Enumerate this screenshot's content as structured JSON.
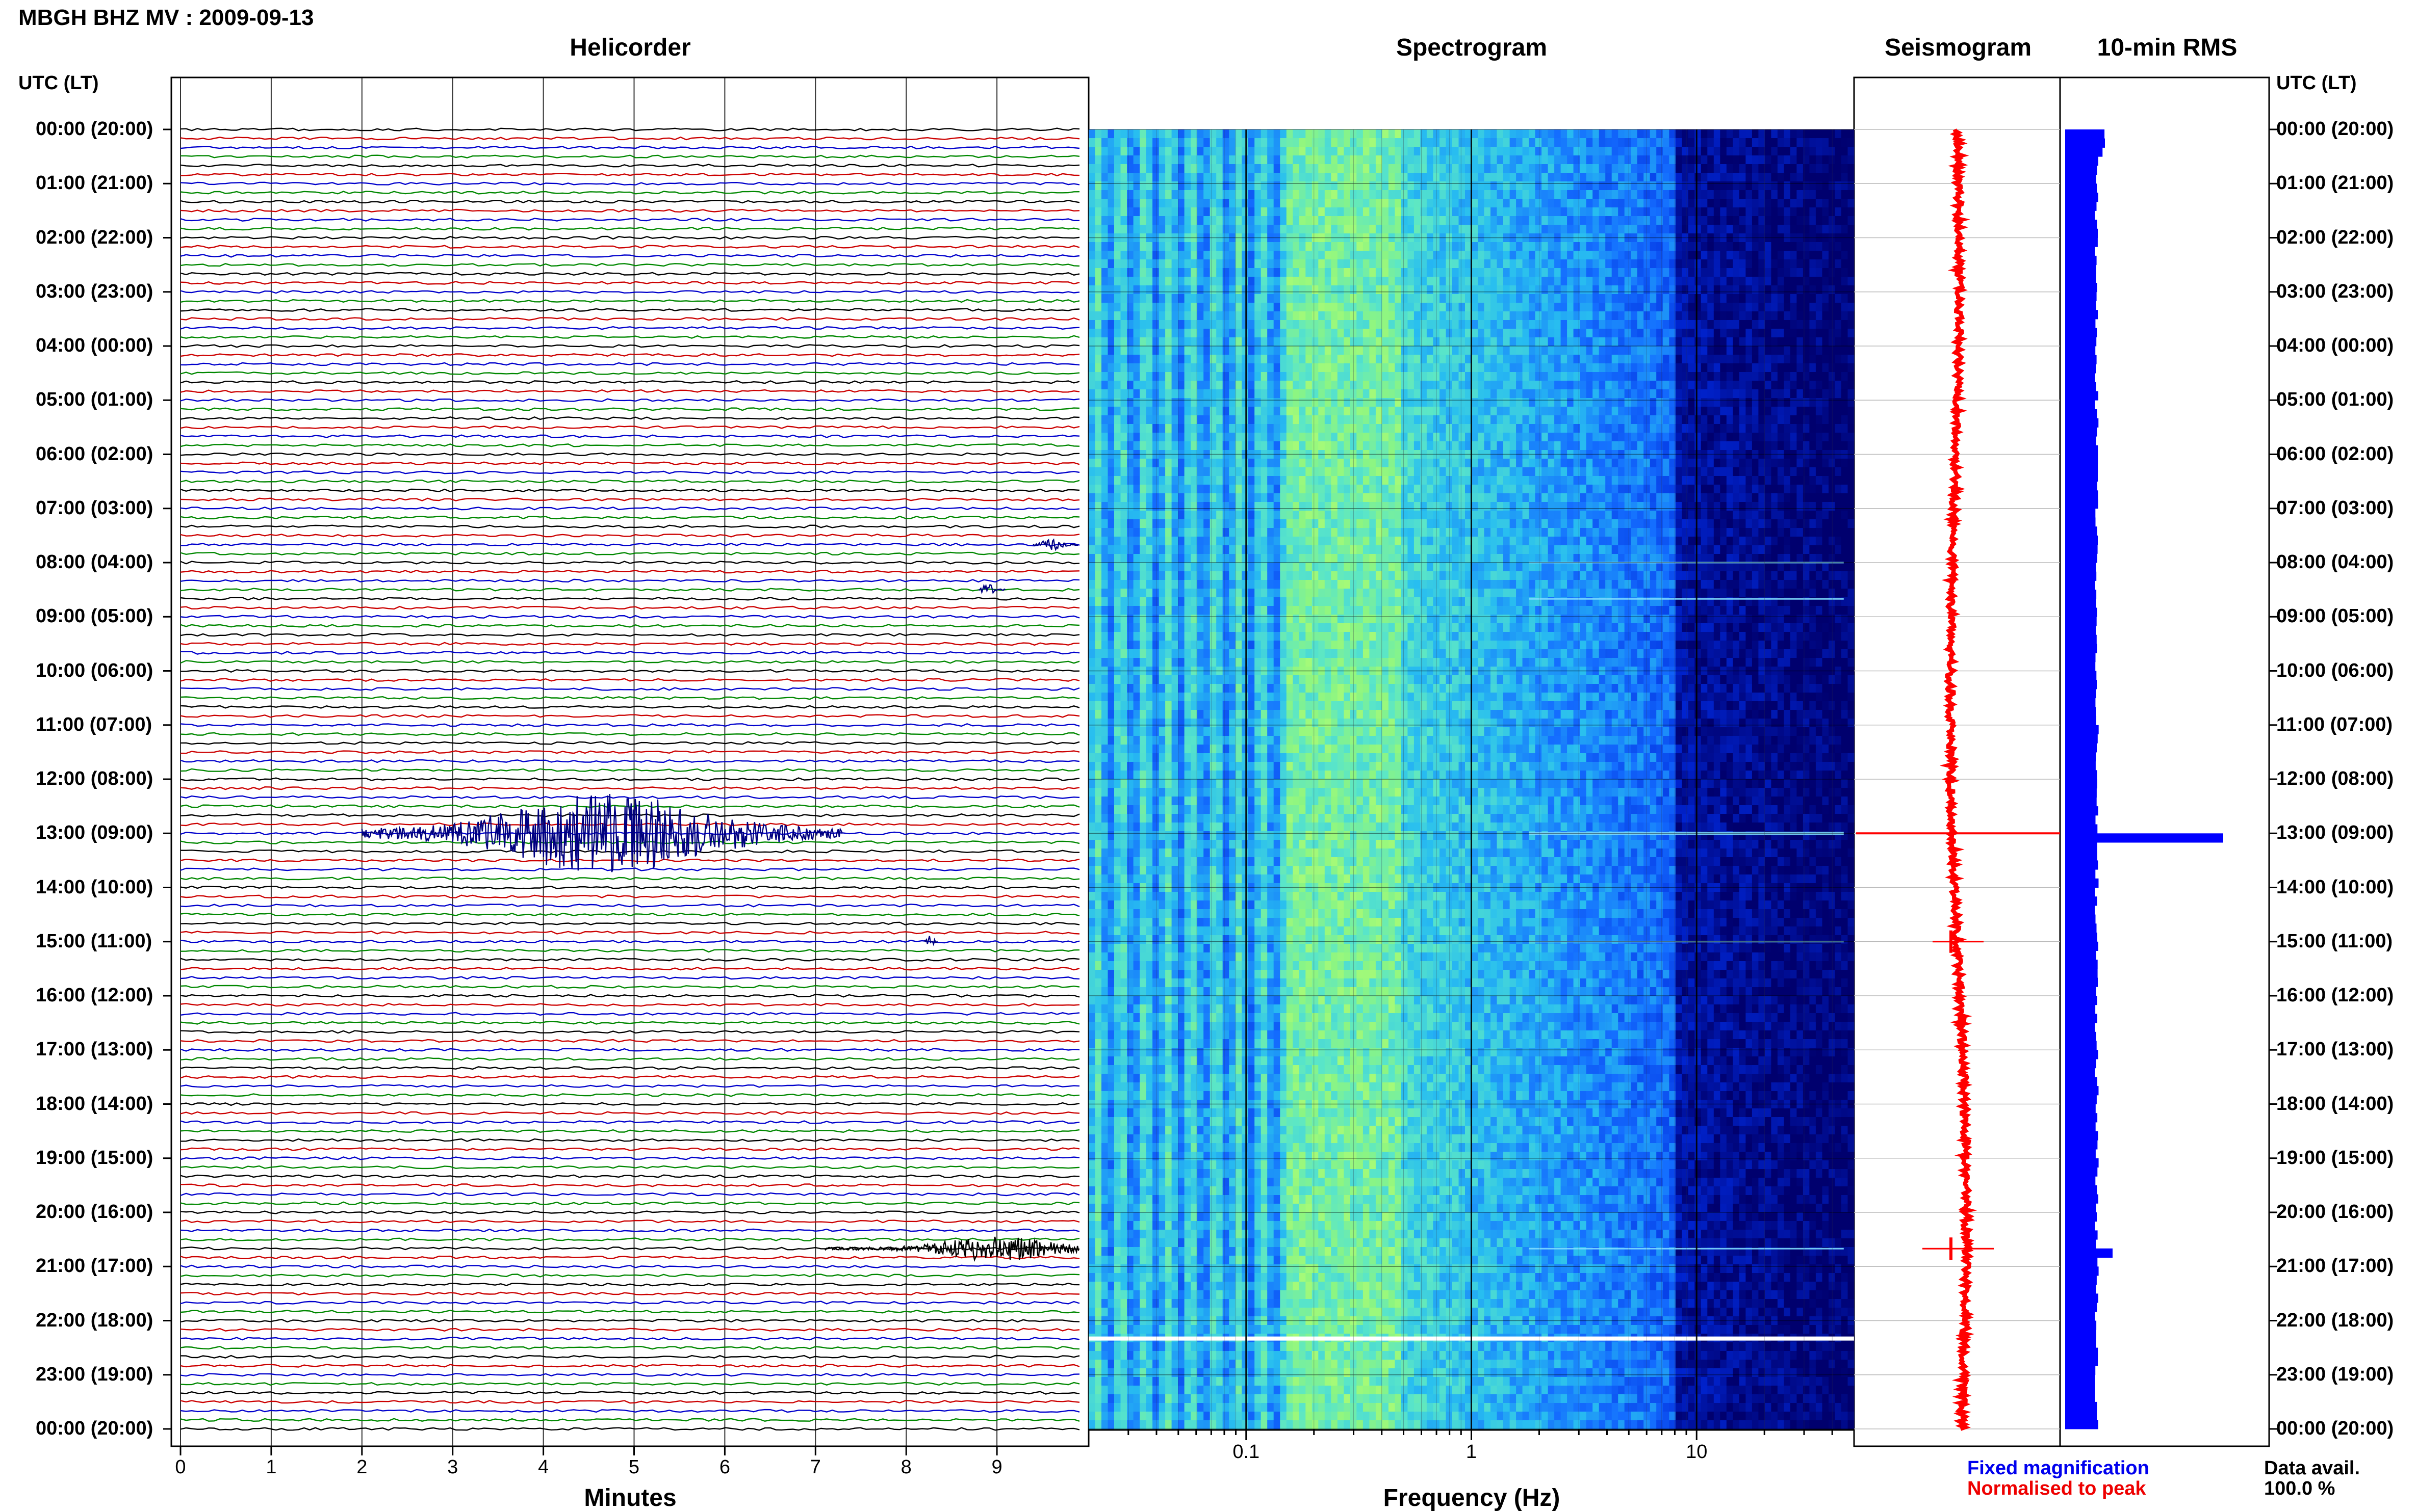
{
  "title": "MBGH BHZ MV : 2009-09-13",
  "panels": {
    "helicorder": "Helicorder",
    "spectrogram": "Spectrogram",
    "seismogram": "Seismogram",
    "rms": "10-min RMS"
  },
  "axis_side_label_left": "UTC (LT)",
  "axis_side_label_right": "UTC (LT)",
  "time_labels": [
    "00:00 (20:00)",
    "01:00 (21:00)",
    "02:00 (22:00)",
    "03:00 (23:00)",
    "04:00 (00:00)",
    "05:00 (01:00)",
    "06:00 (02:00)",
    "07:00 (03:00)",
    "08:00 (04:00)",
    "09:00 (05:00)",
    "10:00 (06:00)",
    "11:00 (07:00)",
    "12:00 (08:00)",
    "13:00 (09:00)",
    "14:00 (10:00)",
    "15:00 (11:00)",
    "16:00 (12:00)",
    "17:00 (13:00)",
    "18:00 (14:00)",
    "19:00 (15:00)",
    "20:00 (16:00)",
    "21:00 (17:00)",
    "22:00 (18:00)",
    "23:00 (19:00)",
    "00:00 (20:00)"
  ],
  "xlabel_helicorder": "Minutes",
  "xlabel_spectrogram": "Frequency (Hz)",
  "legend": {
    "fixed": "Fixed magnification",
    "normalised": "Normalised to peak"
  },
  "data_availability": {
    "label": "Data avail.",
    "value": "100.0 %"
  },
  "colors": {
    "trace_cycle": [
      "#000000",
      "#cc0000",
      "#0000cc",
      "#008800"
    ],
    "event": "#000080",
    "seismogram": "#ff0000",
    "rms_bar": "#0000ff",
    "spectrogram_low": "#000080",
    "spectrogram_high": "#7fff7f"
  },
  "chart_data": [
    {
      "type": "line",
      "name": "helicorder",
      "x_ticks": [
        "0",
        "1",
        "2",
        "3",
        "4",
        "5",
        "6",
        "7",
        "8",
        "9"
      ],
      "xlim": [
        0,
        10
      ],
      "xlabel": "Minutes",
      "rows_per_hour": 6,
      "hours": 24,
      "events": [
        {
          "hour": 13.0,
          "start_min": 2.0,
          "end_min": 7.3,
          "peak_min": 4.7,
          "amplitude": "large"
        },
        {
          "hour": 20.67,
          "start_min": 7.1,
          "end_min": 9.9,
          "peak_min": 9.0,
          "amplitude": "medium"
        },
        {
          "hour": 15.0,
          "start_min": 8.2,
          "end_min": 8.35,
          "peak_min": 8.25,
          "amplitude": "small"
        },
        {
          "hour": 7.67,
          "start_min": 9.4,
          "end_min": 9.9,
          "peak_min": 9.6,
          "amplitude": "small"
        },
        {
          "hour": 8.5,
          "start_min": 8.8,
          "end_min": 9.1,
          "peak_min": 8.9,
          "amplitude": "small"
        }
      ]
    },
    {
      "type": "heatmap",
      "name": "spectrogram",
      "x_scale": "log",
      "xlim": [
        0.02,
        50
      ],
      "x_ticks": [
        "0.1",
        "1",
        "10"
      ],
      "xlabel": "Frequency (Hz)",
      "features": {
        "energy_band_hz": [
          0.15,
          0.5
        ],
        "event_lines_hour": [
          8.0,
          8.67,
          13.0,
          15.0,
          20.67
        ],
        "gap_hour": 22.33
      }
    },
    {
      "type": "line",
      "name": "seismogram",
      "normalisation": "peak",
      "spikes_hour": [
        13.0,
        15.0,
        20.67
      ]
    },
    {
      "type": "bar",
      "name": "10-min RMS",
      "orientation": "horizontal",
      "baseline_level": 1.0,
      "peaks": [
        {
          "hour": 13.0,
          "relative": 5.0
        },
        {
          "hour": 20.67,
          "relative": 1.5
        }
      ]
    }
  ]
}
